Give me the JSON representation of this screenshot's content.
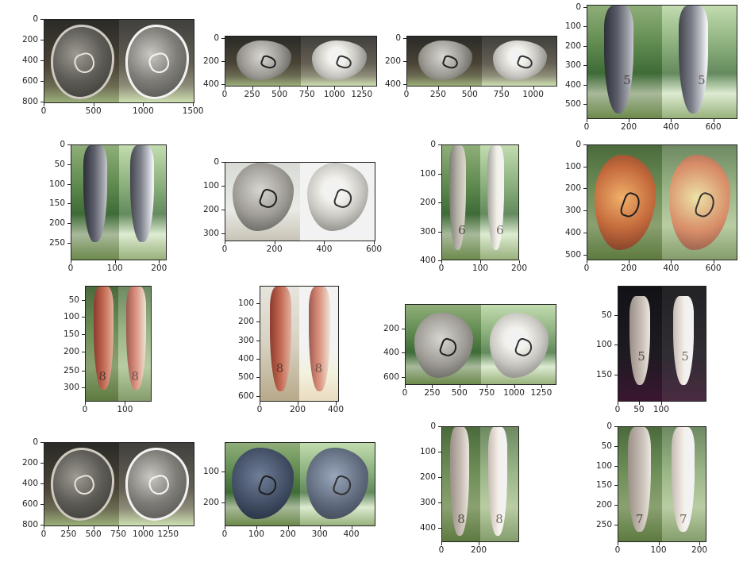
{
  "panels": [
    {
      "name": "plot-r1c1",
      "yticks": [
        "0",
        "200",
        "400",
        "600",
        "800"
      ],
      "xticks": [
        "0",
        "500",
        "1000",
        "1500"
      ]
    },
    {
      "name": "plot-r1c2",
      "yticks": [
        "0",
        "200",
        "400"
      ],
      "xticks": [
        "0",
        "250",
        "500",
        "750",
        "1000",
        "1250"
      ]
    },
    {
      "name": "plot-r1c3",
      "yticks": [
        "0",
        "200",
        "400"
      ],
      "xticks": [
        "0",
        "250",
        "500",
        "750",
        "1000"
      ]
    },
    {
      "name": "plot-r1c4",
      "yticks": [
        "0",
        "100",
        "200",
        "300",
        "400",
        "500"
      ],
      "xticks": [
        "0",
        "200",
        "400",
        "600"
      ],
      "club_number": "5"
    },
    {
      "name": "plot-r2c1",
      "yticks": [
        "0",
        "50",
        "100",
        "150",
        "200",
        "250"
      ],
      "xticks": [
        "0",
        "100",
        "200"
      ]
    },
    {
      "name": "plot-r2c2",
      "yticks": [
        "0",
        "100",
        "200",
        "300"
      ],
      "xticks": [
        "0",
        "200",
        "400",
        "600"
      ]
    },
    {
      "name": "plot-r2c3",
      "yticks": [
        "0",
        "100",
        "200",
        "300",
        "400"
      ],
      "xticks": [
        "0",
        "100",
        "200"
      ],
      "club_number": "6"
    },
    {
      "name": "plot-r2c4",
      "yticks": [
        "0",
        "100",
        "200",
        "300",
        "400",
        "500"
      ],
      "xticks": [
        "0",
        "200",
        "400",
        "600"
      ]
    },
    {
      "name": "plot-r3c1",
      "yticks": [
        "50",
        "100",
        "150",
        "200",
        "250",
        "300"
      ],
      "xticks": [
        "0",
        "100"
      ],
      "club_number": "8"
    },
    {
      "name": "plot-r3c2",
      "yticks": [
        "100",
        "200",
        "300",
        "400",
        "500",
        "600"
      ],
      "xticks": [
        "0",
        "200",
        "400"
      ],
      "club_number": "8"
    },
    {
      "name": "plot-r3c3",
      "yticks": [
        "200",
        "400",
        "600"
      ],
      "xticks": [
        "0",
        "250",
        "500",
        "750",
        "1000",
        "1250"
      ]
    },
    {
      "name": "plot-r3c4",
      "yticks": [
        "50",
        "100",
        "150"
      ],
      "xticks": [
        "0",
        "50",
        "100"
      ],
      "club_number": "5"
    },
    {
      "name": "plot-r4c1",
      "yticks": [
        "0",
        "200",
        "400",
        "600",
        "800"
      ],
      "xticks": [
        "0",
        "250",
        "500",
        "750",
        "1000",
        "1250"
      ]
    },
    {
      "name": "plot-r4c2",
      "yticks": [
        "100",
        "200"
      ],
      "xticks": [
        "0",
        "100",
        "200",
        "300",
        "400"
      ]
    },
    {
      "name": "plot-r4c3",
      "yticks": [
        "0",
        "100",
        "200",
        "300",
        "400"
      ],
      "xticks": [
        "0",
        "200"
      ],
      "club_number": "8"
    },
    {
      "name": "plot-r4c4",
      "yticks": [
        "0",
        "50",
        "100",
        "150",
        "200",
        "250"
      ],
      "xticks": [
        "0",
        "100",
        "200"
      ],
      "club_number": "7"
    }
  ]
}
